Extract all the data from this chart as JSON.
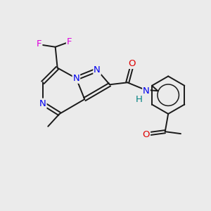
{
  "background_color": "#ebebeb",
  "bond_color": "#1a1a1a",
  "colors": {
    "N": "#0000ee",
    "O": "#dd0000",
    "F": "#dd00dd",
    "C": "#1a1a1a",
    "NH": "#008080"
  },
  "figsize": [
    3.0,
    3.0
  ],
  "dpi": 100
}
